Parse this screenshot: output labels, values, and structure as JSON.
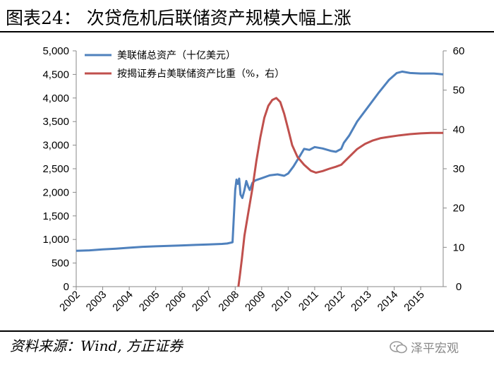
{
  "title": "图表24：  次贷危机后联储资产规模大幅上涨",
  "source": "资料来源：Wind,  方正证券",
  "watermark": "泽平宏观",
  "chart_data": {
    "type": "line",
    "x_ticks": [
      "2002",
      "2003",
      "2004",
      "2005",
      "2006",
      "2007",
      "2008",
      "2009",
      "2010",
      "2011",
      "2012",
      "2013",
      "2014",
      "2015"
    ],
    "xlim": [
      2002,
      2015.85
    ],
    "y_left": {
      "ylim": [
        0,
        5000
      ],
      "ticks": [
        "0",
        "500",
        "1,000",
        "1,500",
        "2,000",
        "2,500",
        "3,000",
        "3,500",
        "4,000",
        "4,500",
        "5,000"
      ]
    },
    "y_right": {
      "ylim": [
        0,
        60
      ],
      "ticks": [
        "0",
        "10",
        "20",
        "30",
        "40",
        "50",
        "60"
      ]
    },
    "grid": false,
    "legend_position": "top-left",
    "series": [
      {
        "name": "美联储总资产（十亿美元）",
        "axis": "left",
        "color": "#4F81BD",
        "points": [
          [
            2002.0,
            760
          ],
          [
            2002.5,
            770
          ],
          [
            2003.0,
            790
          ],
          [
            2003.5,
            805
          ],
          [
            2004.0,
            825
          ],
          [
            2004.5,
            845
          ],
          [
            2005.0,
            855
          ],
          [
            2005.5,
            865
          ],
          [
            2006.0,
            875
          ],
          [
            2006.5,
            885
          ],
          [
            2007.0,
            895
          ],
          [
            2007.5,
            905
          ],
          [
            2007.7,
            915
          ],
          [
            2007.9,
            940
          ],
          [
            2007.97,
            1700
          ],
          [
            2008.0,
            2050
          ],
          [
            2008.05,
            2270
          ],
          [
            2008.1,
            2180
          ],
          [
            2008.15,
            2290
          ],
          [
            2008.2,
            1950
          ],
          [
            2008.27,
            1880
          ],
          [
            2008.35,
            2050
          ],
          [
            2008.42,
            2240
          ],
          [
            2008.5,
            2110
          ],
          [
            2008.55,
            2050
          ],
          [
            2008.65,
            2200
          ],
          [
            2008.75,
            2250
          ],
          [
            2009.0,
            2300
          ],
          [
            2009.3,
            2360
          ],
          [
            2009.6,
            2380
          ],
          [
            2009.85,
            2350
          ],
          [
            2010.0,
            2400
          ],
          [
            2010.2,
            2550
          ],
          [
            2010.45,
            2780
          ],
          [
            2010.6,
            2920
          ],
          [
            2010.8,
            2900
          ],
          [
            2011.0,
            2960
          ],
          [
            2011.3,
            2930
          ],
          [
            2011.6,
            2880
          ],
          [
            2011.8,
            2860
          ],
          [
            2012.0,
            2920
          ],
          [
            2012.1,
            3050
          ],
          [
            2012.3,
            3200
          ],
          [
            2012.6,
            3500
          ],
          [
            2013.0,
            3800
          ],
          [
            2013.4,
            4100
          ],
          [
            2013.8,
            4380
          ],
          [
            2014.1,
            4530
          ],
          [
            2014.3,
            4560
          ],
          [
            2014.6,
            4530
          ],
          [
            2015.0,
            4520
          ],
          [
            2015.5,
            4520
          ],
          [
            2015.85,
            4500
          ]
        ]
      },
      {
        "name": "按揭证券占美联储资产比重（%，右）",
        "axis": "right",
        "color": "#C0504D",
        "points": [
          [
            2008.12,
            0
          ],
          [
            2008.18,
            3
          ],
          [
            2008.25,
            7
          ],
          [
            2008.35,
            13
          ],
          [
            2008.5,
            19
          ],
          [
            2008.65,
            25
          ],
          [
            2008.8,
            32
          ],
          [
            2008.95,
            38
          ],
          [
            2009.1,
            43
          ],
          [
            2009.25,
            46
          ],
          [
            2009.4,
            47.5
          ],
          [
            2009.55,
            48
          ],
          [
            2009.7,
            47
          ],
          [
            2009.85,
            44
          ],
          [
            2010.0,
            40
          ],
          [
            2010.15,
            36
          ],
          [
            2010.35,
            33
          ],
          [
            2010.6,
            31
          ],
          [
            2010.85,
            29.5
          ],
          [
            2011.05,
            29
          ],
          [
            2011.3,
            29.4
          ],
          [
            2011.55,
            30
          ],
          [
            2011.8,
            30.5
          ],
          [
            2012.0,
            31
          ],
          [
            2012.3,
            33
          ],
          [
            2012.6,
            35
          ],
          [
            2012.9,
            36.3
          ],
          [
            2013.2,
            37.2
          ],
          [
            2013.5,
            37.8
          ],
          [
            2013.8,
            38.1
          ],
          [
            2014.2,
            38.5
          ],
          [
            2014.6,
            38.8
          ],
          [
            2015.0,
            39
          ],
          [
            2015.4,
            39.1
          ],
          [
            2015.85,
            39.1
          ]
        ]
      }
    ]
  }
}
